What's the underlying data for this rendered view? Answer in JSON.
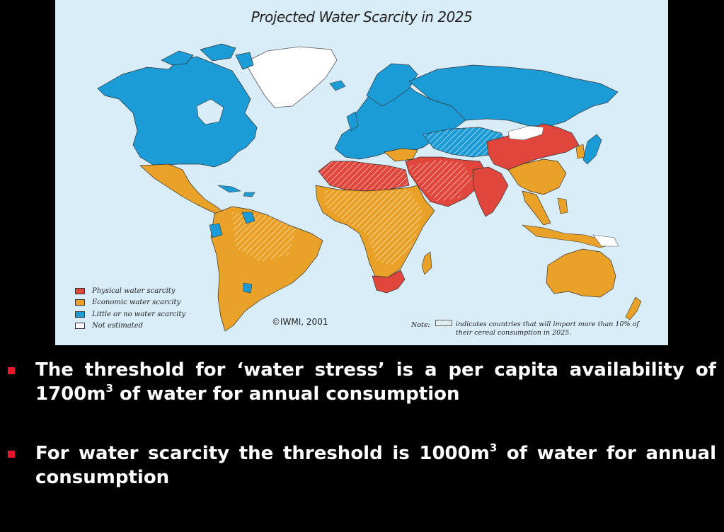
{
  "map": {
    "title": "Projected Water Scarcity in 2025",
    "ocean_color": "#d9edf8",
    "colors": {
      "physical": "#e0463c",
      "economic": "#e9a227",
      "little": "#1c9cd6",
      "not_estimated": "#ffffff"
    },
    "legend": [
      {
        "label": "Physical water scarcity",
        "color": "#e0463c"
      },
      {
        "label": "Economic water scarcity",
        "color": "#e9a227"
      },
      {
        "label": "Little or no water scarcity",
        "color": "#1c9cd6"
      },
      {
        "label": "Not estimated",
        "color": "#ffffff"
      }
    ],
    "copyright": "©IWMI, 2001",
    "note_label": "Note:",
    "note_text": "indicates countries that will import more than 10% of their cereal consumption in 2025."
  },
  "bullets": [
    {
      "text_before": "The threshold for ‘water stress’ is a per capita availability of 1700m",
      "superscript": "3",
      "text_after": " of water for annual consumption"
    },
    {
      "text_before": "For water scarcity the threshold is 1000m",
      "superscript": "3",
      "text_after": " of water for annual consumption"
    }
  ]
}
